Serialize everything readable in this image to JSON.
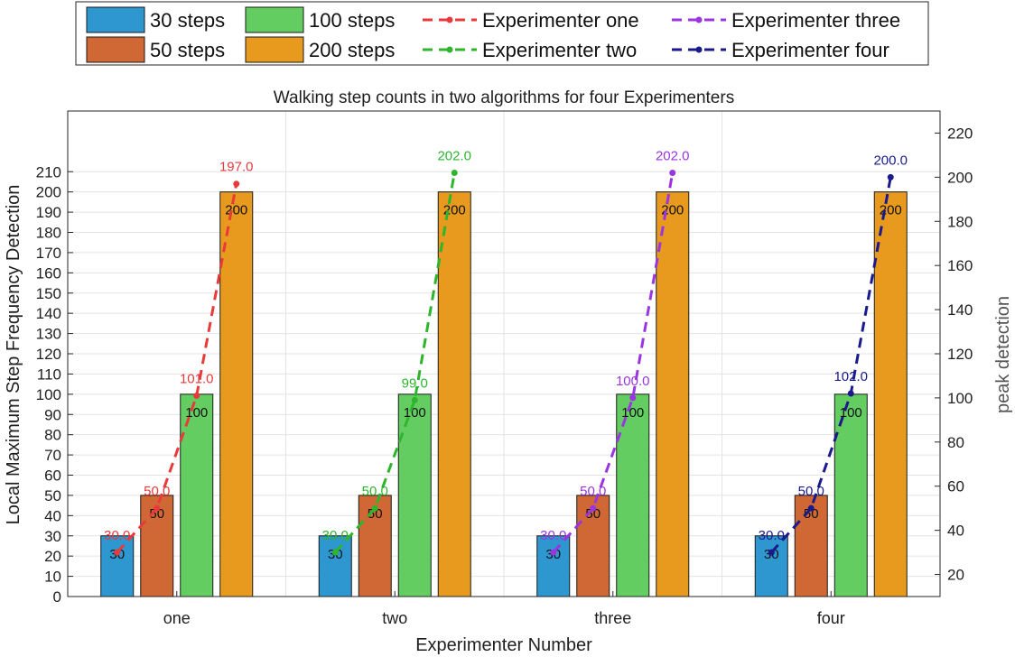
{
  "chart_data": {
    "type": "bar",
    "title": "Walking step counts in two algorithms for four Experimenters",
    "xlabel": "Experimenter Number",
    "ylabel": "Local Maximum Step Frequency Detection",
    "y2label": "peak detection",
    "ylim": [
      0,
      240
    ],
    "y2lim": [
      10,
      230
    ],
    "yticks": [
      "0",
      "10",
      "20",
      "30",
      "40",
      "50",
      "60",
      "70",
      "80",
      "90",
      "100",
      "110",
      "120",
      "130",
      "140",
      "150",
      "160",
      "170",
      "180",
      "190",
      "200",
      "210"
    ],
    "y2ticks": [
      "20",
      "40",
      "60",
      "80",
      "100",
      "120",
      "140",
      "160",
      "180",
      "200",
      "220"
    ],
    "categories": [
      "one",
      "two",
      "three",
      "four"
    ],
    "bar_series": [
      {
        "name": "30 steps",
        "color": "#2f97cf",
        "values": [
          30,
          30,
          30,
          30
        ],
        "labels": [
          "30",
          "30",
          "30",
          "30"
        ]
      },
      {
        "name": "50 steps",
        "color": "#cf6834",
        "values": [
          50,
          50,
          50,
          50
        ],
        "labels": [
          "50",
          "50",
          "50",
          "50"
        ]
      },
      {
        "name": "100 steps",
        "color": "#64cd62",
        "values": [
          100,
          100,
          100,
          100
        ],
        "labels": [
          "100",
          "100",
          "100",
          "100"
        ]
      },
      {
        "name": "200 steps",
        "color": "#e79a1e",
        "values": [
          200,
          200,
          200,
          200
        ],
        "labels": [
          "200",
          "200",
          "200",
          "200"
        ]
      }
    ],
    "line_series": [
      {
        "name": "Experimenter one",
        "color": "#e83a3a",
        "values": [
          30,
          50,
          101,
          197
        ],
        "labels": [
          "30.0",
          "50.0",
          "101.0",
          "197.0"
        ]
      },
      {
        "name": "Experimenter two",
        "color": "#2eb52e",
        "values": [
          30,
          50,
          99,
          202
        ],
        "labels": [
          "30.0",
          "50.0",
          "99.0",
          "202.0"
        ]
      },
      {
        "name": "Experimenter three",
        "color": "#9a35e0",
        "values": [
          30,
          50,
          100,
          202
        ],
        "labels": [
          "30.0",
          "50.0",
          "100.0",
          "202.0"
        ]
      },
      {
        "name": "Experimenter four",
        "color": "#1a1a8c",
        "values": [
          30,
          50,
          102,
          200
        ],
        "labels": [
          "30.0",
          "50.0",
          "102.0",
          "200.0"
        ]
      }
    ],
    "legend": {
      "position": "top",
      "entries": [
        "30 steps",
        "100 steps",
        "Experimenter one",
        "Experimenter three",
        "50 steps",
        "200 steps",
        "Experimenter two",
        "Experimenter four"
      ]
    },
    "grid": true
  }
}
